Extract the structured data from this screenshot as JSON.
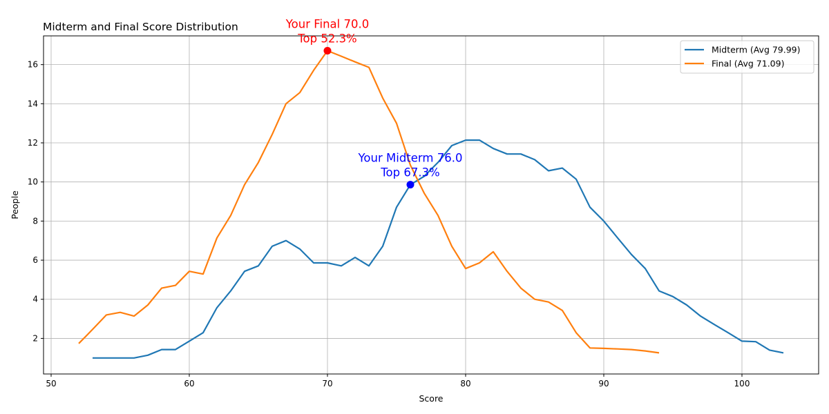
{
  "chart_data": {
    "type": "line",
    "title": "Midterm and Final Score Distribution",
    "xlabel": "Score",
    "ylabel": "People",
    "xlim": [
      49.45,
      105.55
    ],
    "ylim": [
      0.18,
      17.47
    ],
    "xticks": [
      50,
      60,
      70,
      80,
      90,
      100
    ],
    "yticks": [
      2,
      4,
      6,
      8,
      10,
      12,
      14,
      16
    ],
    "grid": true,
    "legend_position": "top-right",
    "series": [
      {
        "name": "Midterm (Avg 79.99)",
        "color": "#1f77b4",
        "x": [
          53,
          54,
          55,
          56,
          57,
          58,
          59,
          60,
          61,
          62,
          63,
          64,
          65,
          66,
          67,
          68,
          69,
          70,
          71,
          72,
          73,
          74,
          75,
          76,
          77,
          78,
          79,
          80,
          81,
          82,
          83,
          84,
          85,
          86,
          87,
          88,
          89,
          90,
          91,
          92,
          93,
          94,
          95,
          96,
          97,
          98,
          99,
          100,
          101,
          102,
          103
        ],
        "y": [
          1.0,
          1.0,
          1.0,
          1.0,
          1.14,
          1.43,
          1.43,
          1.86,
          2.29,
          3.57,
          4.43,
          5.43,
          5.71,
          6.71,
          7.0,
          6.57,
          5.86,
          5.86,
          5.71,
          6.14,
          5.71,
          6.71,
          8.71,
          9.86,
          10.29,
          11.0,
          11.86,
          12.14,
          12.14,
          11.71,
          11.43,
          11.43,
          11.14,
          10.57,
          10.71,
          10.14,
          8.71,
          8.0,
          7.14,
          6.29,
          5.57,
          4.43,
          4.14,
          3.71,
          3.14,
          2.71,
          2.29,
          1.86,
          1.83,
          1.4,
          1.26
        ]
      },
      {
        "name": "Final (Avg 71.09)",
        "color": "#ff7f0e",
        "x": [
          52,
          53,
          54,
          55,
          56,
          57,
          58,
          59,
          60,
          61,
          62,
          63,
          64,
          65,
          66,
          67,
          68,
          69,
          70,
          71,
          72,
          73,
          74,
          75,
          76,
          77,
          78,
          79,
          80,
          81,
          82,
          83,
          84,
          85,
          86,
          87,
          88,
          89,
          90,
          91,
          92,
          93,
          94
        ],
        "y": [
          1.74,
          2.46,
          3.2,
          3.33,
          3.14,
          3.71,
          4.57,
          4.71,
          5.43,
          5.29,
          7.14,
          8.29,
          9.86,
          11.0,
          12.43,
          14.0,
          14.57,
          15.71,
          16.71,
          16.43,
          16.14,
          15.86,
          14.29,
          13.0,
          10.86,
          9.43,
          8.29,
          6.71,
          5.57,
          5.86,
          6.43,
          5.43,
          4.57,
          4.0,
          3.86,
          3.43,
          2.29,
          1.51,
          1.49,
          1.46,
          1.43,
          1.36,
          1.26
        ]
      }
    ],
    "annotations": [
      {
        "lines": [
          "Your Final 70.0",
          "Top 52.3%"
        ],
        "x": 70,
        "y": 16.71,
        "color": "#ff0000"
      },
      {
        "lines": [
          "Your Midterm 76.0",
          "Top 67.3%"
        ],
        "x": 76,
        "y": 9.86,
        "color": "#0000ff"
      }
    ]
  }
}
